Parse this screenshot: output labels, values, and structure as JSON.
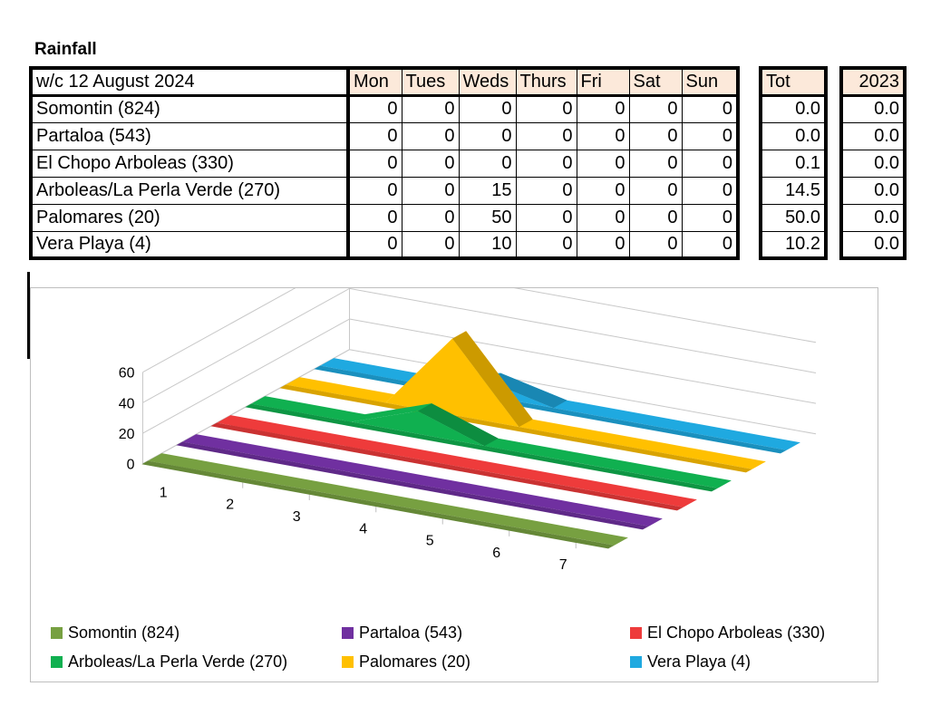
{
  "title": "Rainfall",
  "table": {
    "week_label": "w/c  12 August 2024",
    "days": [
      "Mon",
      "Tues",
      "Weds",
      "Thurs",
      "Fri",
      "Sat",
      "Sun"
    ],
    "tot_label": "Tot",
    "year_label": "2023",
    "rows": [
      {
        "name": "Somontin (824)",
        "values": [
          "0",
          "0",
          "0",
          "0",
          "0",
          "0",
          "0"
        ],
        "tot": "0.0",
        "prev": "0.0"
      },
      {
        "name": "Partaloa (543)",
        "values": [
          "0",
          "0",
          "0",
          "0",
          "0",
          "0",
          "0"
        ],
        "tot": "0.0",
        "prev": "0.0"
      },
      {
        "name": "El Chopo Arboleas (330)",
        "values": [
          "0",
          "0",
          "0",
          "0",
          "0",
          "0",
          "0"
        ],
        "tot": "0.1",
        "prev": "0.0"
      },
      {
        "name": "Arboleas/La Perla Verde (270)",
        "values": [
          "0",
          "0",
          "15",
          "0",
          "0",
          "0",
          "0"
        ],
        "tot": "14.5",
        "prev": "0.0"
      },
      {
        "name": "Palomares (20)",
        "values": [
          "0",
          "0",
          "50",
          "0",
          "0",
          "0",
          "0"
        ],
        "tot": "50.0",
        "prev": "0.0"
      },
      {
        "name": "Vera Playa (4)",
        "values": [
          "0",
          "0",
          "10",
          "0",
          "0",
          "0",
          "0"
        ],
        "tot": "10.2",
        "prev": "0.0"
      }
    ]
  },
  "chart_data": {
    "type": "area",
    "categories": [
      "1",
      "2",
      "3",
      "4",
      "5",
      "6",
      "7"
    ],
    "ylim": [
      0,
      60
    ],
    "yticks": [
      "0",
      "20",
      "40",
      "60"
    ],
    "grid": true,
    "legend_position": "bottom",
    "series": [
      {
        "name": "Somontin (824)",
        "color": "#77a041",
        "values": [
          0,
          0,
          0,
          0,
          0,
          0,
          0
        ]
      },
      {
        "name": "Partaloa (543)",
        "color": "#7030a0",
        "values": [
          0,
          0,
          0,
          0,
          0,
          0,
          0
        ]
      },
      {
        "name": "El Chopo Arboleas (330)",
        "color": "#ee3b3b",
        "values": [
          0,
          0,
          0,
          0,
          0,
          0,
          0
        ]
      },
      {
        "name": "Arboleas/La Perla Verde (270)",
        "color": "#10b050",
        "values": [
          0,
          0,
          15,
          0,
          0,
          0,
          0
        ]
      },
      {
        "name": "Palomares (20)",
        "color": "#ffc000",
        "values": [
          0,
          0,
          50,
          0,
          0,
          0,
          0
        ]
      },
      {
        "name": "Vera Playa (4)",
        "color": "#1fa9e0",
        "values": [
          0,
          0,
          10,
          0,
          0,
          0,
          0
        ]
      }
    ]
  }
}
